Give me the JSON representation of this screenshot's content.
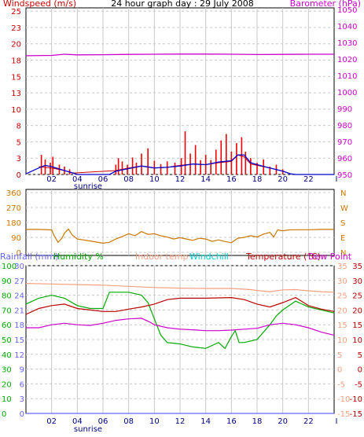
{
  "colors": {
    "wind": "#cc0000",
    "gust": "#ee0000",
    "windavg": "#0000cc",
    "baro": "#cc00cc",
    "dir": "#cc7700",
    "rain": "#6666ff",
    "hum": "#00aa00",
    "indoor": "#f4a080",
    "windchill": "#00cccc",
    "temp": "#bb0000",
    "dew": "#cc00cc",
    "grid": "#c8c8c8",
    "frame": "#000000"
  },
  "chart_data": [
    {
      "type": "line",
      "title": "24 hour graph day : 29 July 2008",
      "left_axis_label": "Windspeed (m/s)",
      "right_axis_label": "Barometer (hPa)",
      "left_ticks": [
        "0",
        "3",
        "5",
        "8",
        "10",
        "13",
        "15",
        "18",
        "20",
        "23",
        "25"
      ],
      "right_ticks": [
        "950",
        "960",
        "970",
        "980",
        "990",
        "1000",
        "1010",
        "1020",
        "1030",
        "1040",
        "1050"
      ],
      "ylim_left": [
        0,
        25.5
      ],
      "ylim_right": [
        950,
        1051
      ],
      "x_ticks": [
        "02",
        "04",
        "06",
        "08",
        "10",
        "12",
        "14",
        "16",
        "18",
        "20",
        "22"
      ],
      "x_extra_tick": "I",
      "sunrise_label": "sunrise",
      "xlim_hours": [
        0,
        24
      ],
      "gusts": [
        [
          1.2,
          3.0
        ],
        [
          1.5,
          2.3
        ],
        [
          1.9,
          1.8
        ],
        [
          2.1,
          2.7
        ],
        [
          2.6,
          1.5
        ],
        [
          3.0,
          1.2
        ],
        [
          3.4,
          0.8
        ],
        [
          7.0,
          1.5
        ],
        [
          7.2,
          2.5
        ],
        [
          7.5,
          2.0
        ],
        [
          7.9,
          1.5
        ],
        [
          8.3,
          2.6
        ],
        [
          8.6,
          1.8
        ],
        [
          9.0,
          3.2
        ],
        [
          9.5,
          4.0
        ],
        [
          10.0,
          2.1
        ],
        [
          10.5,
          1.6
        ],
        [
          11.0,
          2.0
        ],
        [
          11.6,
          1.8
        ],
        [
          12.1,
          2.5
        ],
        [
          12.4,
          6.6
        ],
        [
          12.8,
          3.2
        ],
        [
          13.2,
          4.5
        ],
        [
          13.6,
          2.2
        ],
        [
          14.0,
          3.0
        ],
        [
          14.4,
          2.2
        ],
        [
          14.8,
          3.8
        ],
        [
          15.2,
          5.2
        ],
        [
          15.6,
          6.2
        ],
        [
          16.0,
          3.5
        ],
        [
          16.4,
          4.8
        ],
        [
          16.8,
          5.7
        ],
        [
          17.1,
          3.5
        ],
        [
          17.5,
          2.5
        ],
        [
          18.0,
          1.8
        ],
        [
          18.5,
          2.3
        ],
        [
          19.0,
          1.2
        ],
        [
          19.5,
          1.5
        ],
        [
          20.0,
          0.8
        ]
      ],
      "speed": [
        [
          1.0,
          1.2
        ],
        [
          2.0,
          1.0
        ],
        [
          3.0,
          0.6
        ],
        [
          3.6,
          0.2
        ],
        [
          7.0,
          0.6
        ],
        [
          8.0,
          1.0
        ],
        [
          9.0,
          1.3
        ],
        [
          10.0,
          1.0
        ],
        [
          11.0,
          1.1
        ],
        [
          12.0,
          1.4
        ],
        [
          13.0,
          1.6
        ],
        [
          14.0,
          1.5
        ],
        [
          15.0,
          1.8
        ],
        [
          16.0,
          2.0
        ],
        [
          16.5,
          3.0
        ],
        [
          17.0,
          2.7
        ],
        [
          17.5,
          1.6
        ],
        [
          18.0,
          1.4
        ],
        [
          19.0,
          1.0
        ],
        [
          20.0,
          0.5
        ],
        [
          20.5,
          0.2
        ]
      ],
      "avg": [
        [
          0.0,
          0.1
        ],
        [
          1.0,
          1.0
        ],
        [
          1.5,
          1.4
        ],
        [
          2.0,
          1.2
        ],
        [
          2.5,
          0.9
        ],
        [
          3.0,
          0.6
        ],
        [
          3.7,
          0.2
        ],
        [
          4.0,
          0.0
        ],
        [
          6.5,
          0.0
        ],
        [
          7.0,
          0.5
        ],
        [
          8.0,
          0.9
        ],
        [
          9.0,
          1.3
        ],
        [
          10.0,
          1.0
        ],
        [
          11.0,
          1.1
        ],
        [
          12.0,
          1.3
        ],
        [
          13.0,
          1.6
        ],
        [
          14.0,
          1.5
        ],
        [
          15.0,
          1.9
        ],
        [
          16.0,
          2.1
        ],
        [
          16.5,
          3.0
        ],
        [
          17.0,
          3.0
        ],
        [
          17.5,
          1.8
        ],
        [
          18.0,
          1.5
        ],
        [
          19.0,
          1.0
        ],
        [
          20.0,
          0.5
        ],
        [
          20.6,
          0.1
        ],
        [
          21.0,
          0.0
        ],
        [
          24.0,
          0.0
        ]
      ],
      "pressure": [
        [
          0.0,
          1022.0
        ],
        [
          2.0,
          1022.2
        ],
        [
          3.0,
          1022.9
        ],
        [
          4.0,
          1022.5
        ],
        [
          6.0,
          1022.6
        ],
        [
          8.0,
          1022.8
        ],
        [
          10.0,
          1022.9
        ],
        [
          12.0,
          1023.0
        ],
        [
          14.0,
          1023.0
        ],
        [
          16.0,
          1022.9
        ],
        [
          18.0,
          1022.7
        ],
        [
          20.0,
          1022.8
        ],
        [
          22.0,
          1022.9
        ],
        [
          24.0,
          1022.9
        ]
      ]
    },
    {
      "type": "line",
      "left_ticks": [
        "0",
        "90",
        "180",
        "270",
        "360"
      ],
      "right_ticks": [
        "N",
        "E",
        "S",
        "W",
        "N"
      ],
      "ylim": [
        0,
        360
      ],
      "direction": [
        [
          0.0,
          138
        ],
        [
          1.0,
          138
        ],
        [
          2.0,
          135
        ],
        [
          2.2,
          100
        ],
        [
          2.5,
          60
        ],
        [
          2.8,
          85
        ],
        [
          3.0,
          115
        ],
        [
          3.3,
          140
        ],
        [
          3.6,
          105
        ],
        [
          4.0,
          80
        ],
        [
          5.0,
          68
        ],
        [
          6.0,
          55
        ],
        [
          6.5,
          60
        ],
        [
          7.0,
          80
        ],
        [
          7.5,
          95
        ],
        [
          8.0,
          112
        ],
        [
          8.5,
          100
        ],
        [
          9.0,
          125
        ],
        [
          9.5,
          108
        ],
        [
          10.0,
          112
        ],
        [
          10.5,
          100
        ],
        [
          11.0,
          92
        ],
        [
          11.5,
          80
        ],
        [
          12.0,
          88
        ],
        [
          12.5,
          80
        ],
        [
          13.0,
          72
        ],
        [
          13.5,
          85
        ],
        [
          14.0,
          80
        ],
        [
          14.5,
          66
        ],
        [
          15.0,
          75
        ],
        [
          15.5,
          65
        ],
        [
          16.0,
          58
        ],
        [
          16.5,
          85
        ],
        [
          17.0,
          90
        ],
        [
          17.5,
          100
        ],
        [
          18.0,
          92
        ],
        [
          18.5,
          110
        ],
        [
          19.0,
          120
        ],
        [
          19.3,
          92
        ],
        [
          19.6,
          135
        ],
        [
          20.0,
          130
        ],
        [
          20.5,
          135
        ],
        [
          21.0,
          136
        ],
        [
          22.0,
          136
        ],
        [
          23.0,
          138
        ],
        [
          24.0,
          138
        ]
      ]
    },
    {
      "type": "line",
      "labels": {
        "rainfall": "Rainfall (mm)",
        "humidity": "Humidity %",
        "indoor": "Indoor temp",
        "windchill": "Windchill",
        "temperature": "Temperature (°C)",
        "dewpoint": "Dew Point"
      },
      "rain_ticks": [
        "0",
        "3",
        "6",
        "9",
        "12",
        "15",
        "18",
        "21",
        "24",
        "27",
        "30"
      ],
      "hum_ticks": [
        "0",
        "10",
        "20",
        "30",
        "40",
        "50",
        "60",
        "70",
        "80",
        "90",
        "100"
      ],
      "temp_ticks_left": [
        "-15",
        "-10",
        "-5",
        "0",
        "5",
        "10",
        "15",
        "20",
        "25",
        "30",
        "35"
      ],
      "temp_ticks_right": [
        "-15",
        "-10",
        "-5",
        "0",
        "5",
        "10",
        "15",
        "20",
        "25",
        "30",
        "35"
      ],
      "ylim_temp": [
        -15,
        35
      ],
      "indoor": [
        [
          0.0,
          29.0
        ],
        [
          2.0,
          28.8
        ],
        [
          4.0,
          28.6
        ],
        [
          6.0,
          28.4
        ],
        [
          8.0,
          28.0
        ],
        [
          10.0,
          27.6
        ],
        [
          12.0,
          27.4
        ],
        [
          14.0,
          27.3
        ],
        [
          16.0,
          27.3
        ],
        [
          17.5,
          26.9
        ],
        [
          18.0,
          26.6
        ],
        [
          19.0,
          26.2
        ],
        [
          20.0,
          26.8
        ],
        [
          21.0,
          26.9
        ],
        [
          22.0,
          26.5
        ],
        [
          23.0,
          26.2
        ],
        [
          24.0,
          26.0
        ]
      ],
      "temperature": [
        [
          0.0,
          18.5
        ],
        [
          1.0,
          20.5
        ],
        [
          2.0,
          21.5
        ],
        [
          3.0,
          22.0
        ],
        [
          4.0,
          20.5
        ],
        [
          5.0,
          20.0
        ],
        [
          6.0,
          19.5
        ],
        [
          7.0,
          19.5
        ],
        [
          8.0,
          20.3
        ],
        [
          9.0,
          21.0
        ],
        [
          10.0,
          22.0
        ],
        [
          11.0,
          23.5
        ],
        [
          12.0,
          24.0
        ],
        [
          14.0,
          24.0
        ],
        [
          16.0,
          24.2
        ],
        [
          17.0,
          23.5
        ],
        [
          18.0,
          22.0
        ],
        [
          19.0,
          21.0
        ],
        [
          20.0,
          22.5
        ],
        [
          21.0,
          24.2
        ],
        [
          22.0,
          21.5
        ],
        [
          23.0,
          20.3
        ],
        [
          24.0,
          19.5
        ]
      ],
      "dewpoint": [
        [
          0.0,
          14.0
        ],
        [
          1.0,
          14.0
        ],
        [
          2.0,
          15.0
        ],
        [
          3.0,
          15.5
        ],
        [
          4.0,
          15.0
        ],
        [
          5.0,
          14.8
        ],
        [
          6.0,
          15.5
        ],
        [
          7.0,
          16.5
        ],
        [
          8.0,
          17.0
        ],
        [
          9.0,
          17.2
        ],
        [
          9.6,
          16.0
        ],
        [
          10.0,
          15.0
        ],
        [
          11.0,
          14.0
        ],
        [
          12.0,
          13.5
        ],
        [
          13.0,
          13.3
        ],
        [
          14.0,
          13.0
        ],
        [
          15.0,
          13.0
        ],
        [
          16.0,
          13.2
        ],
        [
          17.0,
          13.5
        ],
        [
          18.0,
          13.8
        ],
        [
          19.0,
          15.0
        ],
        [
          20.0,
          15.5
        ],
        [
          21.0,
          15.0
        ],
        [
          22.0,
          14.0
        ],
        [
          23.0,
          12.5
        ],
        [
          24.0,
          11.5
        ]
      ],
      "humidity": [
        [
          0.0,
          74
        ],
        [
          1.0,
          78
        ],
        [
          2.0,
          80
        ],
        [
          3.0,
          78
        ],
        [
          4.0,
          73
        ],
        [
          5.0,
          71
        ],
        [
          6.0,
          71
        ],
        [
          6.5,
          82
        ],
        [
          7.0,
          82
        ],
        [
          8.0,
          82
        ],
        [
          9.0,
          80
        ],
        [
          9.5,
          75
        ],
        [
          10.0,
          64
        ],
        [
          10.5,
          53
        ],
        [
          11.0,
          48
        ],
        [
          12.0,
          47
        ],
        [
          13.0,
          45
        ],
        [
          14.0,
          44
        ],
        [
          14.5,
          46
        ],
        [
          15.0,
          48
        ],
        [
          15.5,
          44
        ],
        [
          16.0,
          52
        ],
        [
          16.3,
          56
        ],
        [
          16.6,
          48
        ],
        [
          17.0,
          48
        ],
        [
          18.0,
          50
        ],
        [
          19.0,
          60
        ],
        [
          19.5,
          66
        ],
        [
          20.0,
          70
        ],
        [
          21.0,
          76
        ],
        [
          22.0,
          72
        ],
        [
          23.0,
          70
        ],
        [
          24.0,
          68
        ]
      ],
      "rain": [
        [
          0.0,
          0.0
        ],
        [
          24.0,
          0.0
        ]
      ]
    }
  ]
}
